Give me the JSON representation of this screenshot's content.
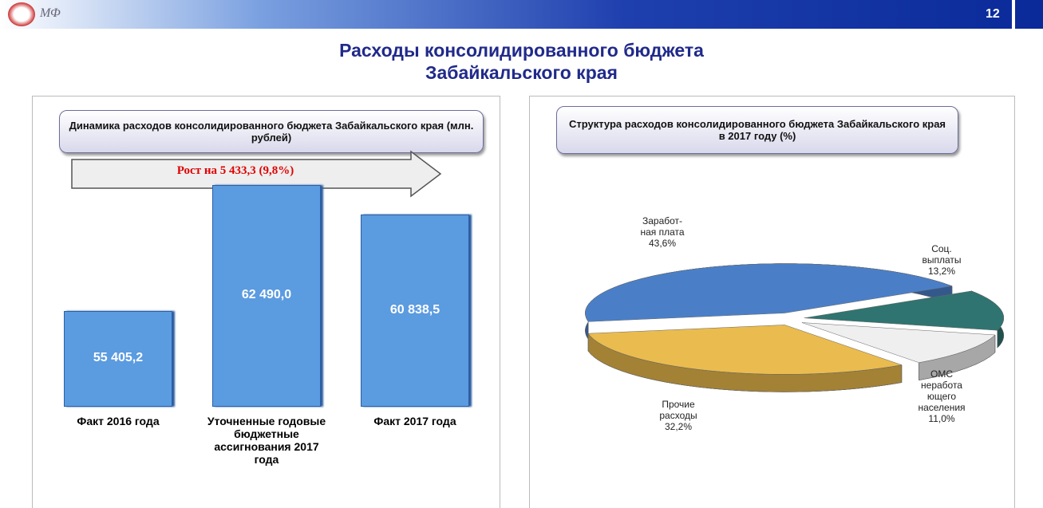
{
  "page_number": "12",
  "title": [
    "Расходы консолидированного  бюджета",
    "Забайкальского края"
  ],
  "chart_data": [
    {
      "type": "bar",
      "title": "Динамика расходов консолидированного бюджета Забайкальского края (млн. рублей)",
      "annotation": "Рост на 5 433,3 (9,8%)",
      "categories": [
        "Факт 2016 года",
        "Уточненные годовые бюджетные ассигнования 2017 года",
        "Факт 2017 года"
      ],
      "values": [
        55405.2,
        62490.0,
        60838.5
      ],
      "value_labels": [
        "55 405,2",
        "62 490,0",
        "60 838,5"
      ],
      "color": "#5b9be0",
      "ylim": [
        50000,
        63000
      ]
    },
    {
      "type": "pie",
      "title": "Структура  расходов консолидированного бюджета Забайкальского  края в 2017  году  (%)",
      "categories": [
        "Заработ-\nная плата",
        "Соц.\nвыплаты",
        "ОМС\nнеработа\nющего\nнаселения",
        "Прочие\nрасходы"
      ],
      "values": [
        43.6,
        13.2,
        11.0,
        32.2
      ],
      "value_labels": [
        "43,6%",
        "13,2%",
        "11,0%",
        "32,2%"
      ],
      "colors": [
        "#4a7fc8",
        "#2f7470",
        "#efefef",
        "#eabb4e"
      ]
    }
  ]
}
